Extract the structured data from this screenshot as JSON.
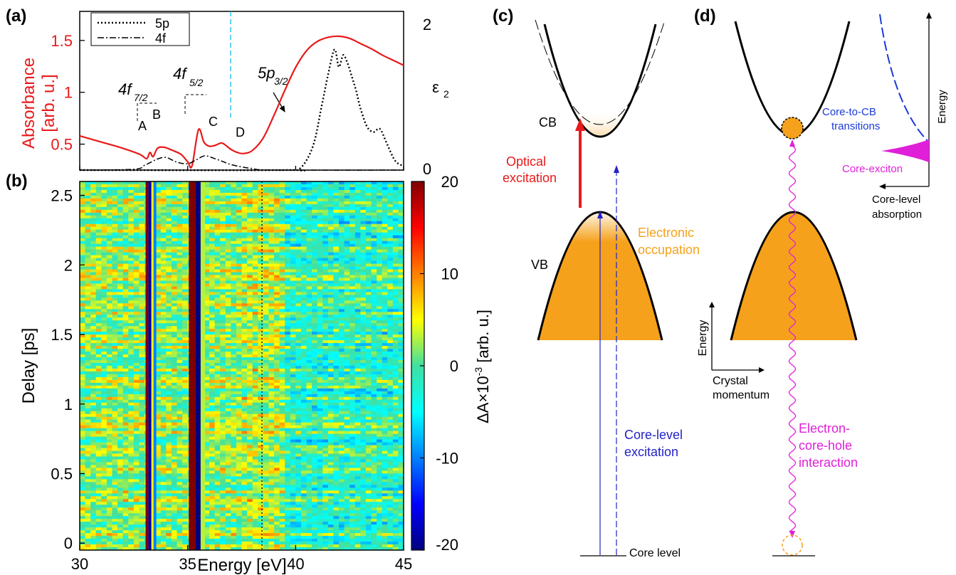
{
  "panels": {
    "a": "(a)",
    "b": "(b)",
    "c": "(c)",
    "d": "(d)"
  },
  "panel_a": {
    "ylabel_line1": "Absorbance",
    "ylabel_line2": "[arb. u.]",
    "y_ticks": [
      "0.5",
      "1",
      "1.5"
    ],
    "y2_label": "ε",
    "y2_label_sub": "2",
    "y2_ticks": [
      "0",
      "2"
    ],
    "legend": [
      "5p",
      "4f"
    ],
    "edge_labels": [
      {
        "base": "4f",
        "sub": "7/2"
      },
      {
        "base": "4f",
        "sub": "5/2"
      },
      {
        "base": "5p",
        "sub": "3/2"
      }
    ],
    "peaks": [
      "A",
      "B",
      "C",
      "D"
    ],
    "colors": {
      "absorbance": "#e8191a",
      "eps": "#000000",
      "marker": "#29c5e6"
    }
  },
  "panel_b": {
    "ylabel": "Delay [ps]",
    "xlabel": "Energy [eV]",
    "x_ticks": [
      "30",
      "35",
      "40",
      "45"
    ],
    "y_ticks": [
      "0",
      "0.5",
      "1",
      "1.5",
      "2",
      "2.5"
    ],
    "cbar_label": "ΔA×10",
    "cbar_label_exp": "-3",
    "cbar_label_unit": "[arb. u.]",
    "cbar_ticks": [
      "20",
      "10",
      "0",
      "-10",
      "-20"
    ]
  },
  "panel_c": {
    "cb": "CB",
    "vb": "VB",
    "optical_line1": "Optical",
    "optical_line2": "excitation",
    "occupation_line1": "Electronic",
    "occupation_line2": "occupation",
    "core_exc_line1": "Core-level",
    "core_exc_line2": "excitation",
    "core_level": "Core level",
    "colors": {
      "optical": "#e8191a",
      "core": "#2323c8",
      "occupation": "#f5a11b"
    }
  },
  "panel_d": {
    "axis_energy": "Energy",
    "axis_momentum_line1": "Crystal",
    "axis_momentum_line2": "momentum",
    "interaction_line1": "Electron-",
    "interaction_line2": "core-hole",
    "interaction_line3": "interaction",
    "transitions_line1": "Core-to-CB",
    "transitions_line2": "transitions",
    "core_exciton": "Core-exciton",
    "absorption_line1": "Core-level",
    "absorption_line2": "absorption",
    "inset_energy": "Energy",
    "colors": {
      "interaction": "#e020d8",
      "transitions": "#1a3ad8"
    }
  },
  "chart_data": [
    {
      "type": "line",
      "panel": "a",
      "xlabel": "",
      "ylabel": "Absorbance [arb. u.]",
      "xlim": [
        30,
        45
      ],
      "ylim": [
        0.25,
        1.78
      ],
      "y2label": "ε2",
      "y2lim": [
        0,
        2
      ],
      "series": [
        {
          "name": "",
          "axis": "left",
          "x": [
            30,
            31,
            32,
            32.8,
            33.1,
            33.25,
            33.4,
            33.6,
            33.9,
            34.3,
            34.7,
            35.0,
            35.2,
            35.5,
            35.75,
            36.0,
            36.3,
            36.6,
            37.0,
            37.3,
            37.6,
            38.0,
            38.5,
            39.0,
            39.5,
            40.0,
            40.5,
            41.0,
            41.5,
            42.0,
            42.5,
            43.0,
            43.5,
            44.0,
            44.5,
            45.0
          ],
          "y": [
            0.58,
            0.52,
            0.46,
            0.4,
            0.36,
            0.42,
            0.38,
            0.46,
            0.47,
            0.44,
            0.4,
            0.33,
            0.29,
            0.64,
            0.52,
            0.48,
            0.49,
            0.51,
            0.45,
            0.42,
            0.41,
            0.44,
            0.56,
            0.78,
            1.02,
            1.24,
            1.4,
            1.49,
            1.53,
            1.54,
            1.52,
            1.47,
            1.42,
            1.36,
            1.31,
            1.26
          ]
        },
        {
          "name": "5p",
          "axis": "right",
          "x": [
            30,
            39.5,
            40.2,
            40.8,
            41.2,
            41.5,
            41.8,
            42.0,
            42.2,
            42.4,
            42.6,
            42.8,
            43.0,
            43.3,
            43.6,
            43.9,
            44.2,
            44.6,
            45.0
          ],
          "y": [
            0,
            0,
            0.02,
            0.3,
            0.8,
            1.2,
            1.52,
            1.3,
            1.45,
            1.35,
            1.18,
            1.0,
            0.78,
            0.55,
            0.48,
            0.52,
            0.35,
            0.12,
            0.05
          ]
        },
        {
          "name": "4f",
          "axis": "right",
          "x": [
            30,
            32.5,
            33.0,
            33.3,
            33.6,
            34.0,
            34.5,
            35.0,
            35.4,
            35.8,
            36.2,
            36.6,
            37.0,
            37.5,
            38.0,
            39.0,
            45.0
          ],
          "y": [
            0,
            0.01,
            0.06,
            0.1,
            0.14,
            0.16,
            0.1,
            0.08,
            0.13,
            0.18,
            0.15,
            0.11,
            0.07,
            0.04,
            0.02,
            0.0,
            0.0
          ]
        }
      ],
      "annotations": [
        "A",
        "B",
        "C",
        "D",
        "4f7/2",
        "4f5/2",
        "5p3/2"
      ]
    },
    {
      "type": "heatmap",
      "panel": "b",
      "xlabel": "Energy [eV]",
      "ylabel": "Delay [ps]",
      "xlim": [
        30,
        45
      ],
      "ylim": [
        -0.05,
        2.6
      ],
      "colorbar": {
        "label": "ΔA×10^-3 [arb. u.]",
        "range": [
          -20,
          20
        ]
      },
      "features": [
        {
          "energy_range": [
            33.05,
            33.18
          ],
          "value": 20
        },
        {
          "energy_range": [
            33.18,
            33.32
          ],
          "value": -18
        },
        {
          "energy_range": [
            33.32,
            33.42
          ],
          "value": 5
        },
        {
          "energy_range": [
            33.42,
            33.55
          ],
          "value": -10
        },
        {
          "energy_range": [
            35.05,
            35.35
          ],
          "value": 20
        },
        {
          "energy_range": [
            35.35,
            35.6
          ],
          "value": -20
        },
        {
          "energy_range": [
            35.6,
            35.8
          ],
          "value": 3
        }
      ],
      "marker_energy": 38.4
    }
  ]
}
